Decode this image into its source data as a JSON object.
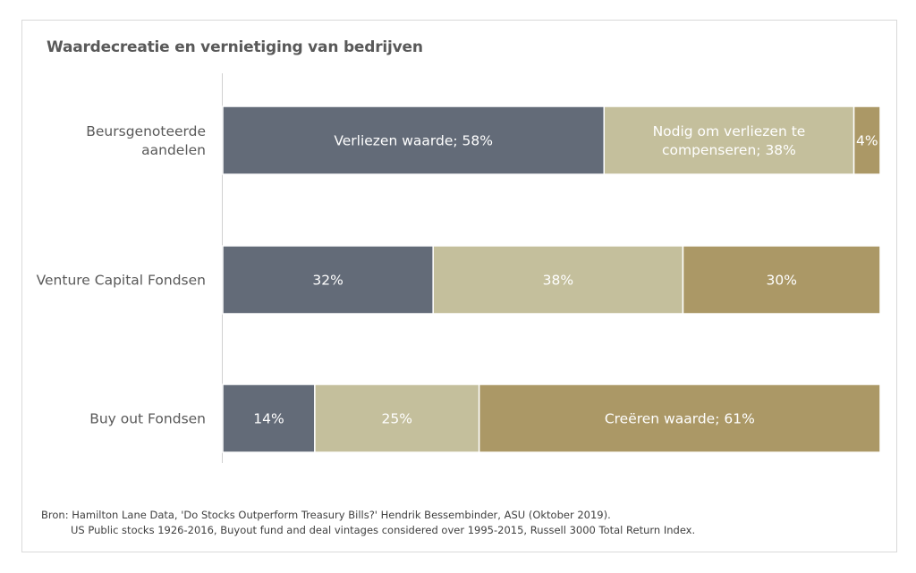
{
  "chart_data": {
    "type": "bar",
    "orientation": "horizontal",
    "stacked": true,
    "title": "Waardecreatie en vernietiging van bedrijven",
    "xlim": [
      0,
      100
    ],
    "grid": false,
    "legend": "none",
    "categories": [
      [
        "Beursgenoteerde",
        "aandelen"
      ],
      [
        "Venture Capital Fondsen"
      ],
      [
        "Buy out Fondsen"
      ]
    ],
    "series": [
      {
        "color": "#636b78",
        "values": [
          58,
          32,
          14
        ],
        "labels": [
          [
            "Verliezen waarde; 58%"
          ],
          [
            "32%"
          ],
          [
            "14%"
          ]
        ]
      },
      {
        "color": "#c4bf9c",
        "values": [
          38,
          38,
          25
        ],
        "labels": [
          [
            "Nodig om verliezen te",
            "compenseren; 38%"
          ],
          [
            "38%"
          ],
          [
            "25%"
          ]
        ]
      },
      {
        "color": "#ab9866",
        "values": [
          4,
          30,
          61
        ],
        "labels": [
          [
            "4%"
          ],
          [
            "30%"
          ],
          [
            "Creëren waarde; 61%"
          ]
        ]
      }
    ]
  },
  "source": {
    "line1": "Bron: Hamilton Lane Data, 'Do Stocks Outperform Treasury Bills?' Hendrik Bessembinder, ASU (Oktober 2019).",
    "line2": "US Public stocks 1926-2016, Buyout fund and deal vintages considered over 1995-2015, Russell 3000 Total Return Index."
  }
}
